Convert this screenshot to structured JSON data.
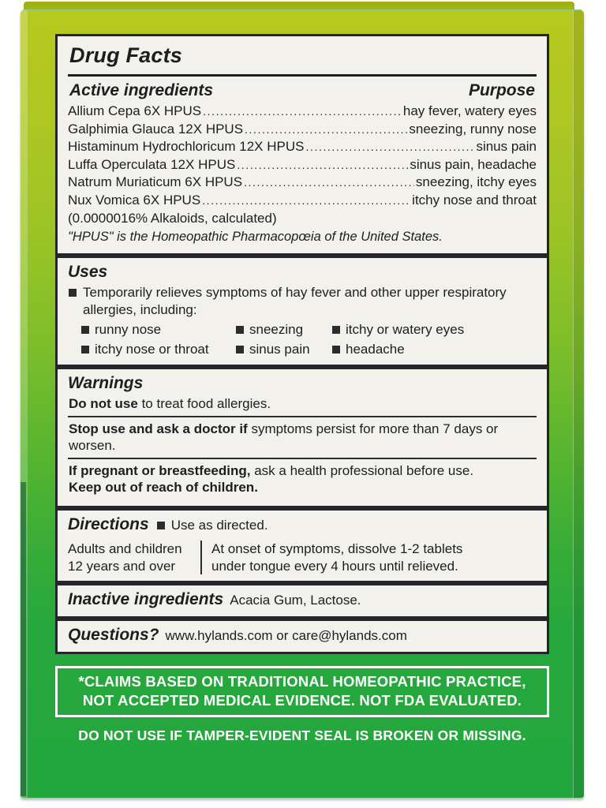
{
  "colors": {
    "box_top": "#b6c91e",
    "box_bottom": "#23a63e",
    "flap": "#aaba16",
    "panel_background": "#f2f1ec",
    "panel_border": "#24262b",
    "ink": "#1d1e20",
    "footer_text": "#ffffff"
  },
  "panel": {
    "title": "Drug Facts",
    "active": {
      "heading": "Active ingredients",
      "purpose_heading": "Purpose",
      "rows": [
        {
          "name": "Allium Cepa 6X HPUS",
          "purpose": "hay fever, watery eyes"
        },
        {
          "name": "Galphimia Glauca 12X HPUS",
          "purpose": "sneezing, runny nose"
        },
        {
          "name": "Histaminum Hydrochloricum 12X HPUS",
          "purpose": "sinus pain"
        },
        {
          "name": "Luffa Operculata 12X HPUS",
          "purpose": "sinus pain, headache"
        },
        {
          "name": "Natrum Muriaticum 6X HPUS",
          "purpose": "sneezing, itchy eyes"
        },
        {
          "name": "Nux Vomica 6X HPUS",
          "purpose": "itchy nose and throat"
        }
      ],
      "alkaloids_note": "(0.0000016% Alkaloids, calculated)",
      "hpus_note": "\"HPUS\" is the Homeopathic Pharmacopœia of the United States."
    },
    "uses": {
      "heading": "Uses",
      "main": "Temporarily relieves symptoms of hay fever and other upper respiratory allergies, including:",
      "items": [
        "runny nose",
        "sneezing",
        "itchy or watery eyes",
        "itchy nose or throat",
        "sinus pain",
        "headache"
      ]
    },
    "warnings": {
      "heading": "Warnings",
      "do_not_use_bold": "Do not use",
      "do_not_use_rest": " to treat food allergies.",
      "stop_use_bold": "Stop use and ask a doctor if",
      "stop_use_rest": " symptoms persist for more than 7 days or worsen.",
      "pregnant_bold": "If pregnant or breastfeeding,",
      "pregnant_rest": " ask a health professional before use.",
      "keep_out": "Keep out of reach of children."
    },
    "directions": {
      "heading": "Directions",
      "inline": "Use as directed.",
      "age_line1": "Adults and children",
      "age_line2": "12 years and over",
      "dose_line1": "At onset of symptoms, dissolve 1-2 tablets",
      "dose_line2": "under tongue every 4 hours until relieved."
    },
    "inactive": {
      "heading": "Inactive ingredients",
      "text": "Acacia Gum, Lactose."
    },
    "questions": {
      "heading": "Questions?",
      "text": "www.hylands.com or care@hylands.com"
    }
  },
  "footer": {
    "claims_line1": "*CLAIMS BASED ON TRADITIONAL HOMEOPATHIC PRACTICE,",
    "claims_line2": "NOT ACCEPTED MEDICAL EVIDENCE. NOT FDA EVALUATED.",
    "tamper": "DO NOT USE IF TAMPER-EVIDENT SEAL IS BROKEN OR MISSING."
  }
}
